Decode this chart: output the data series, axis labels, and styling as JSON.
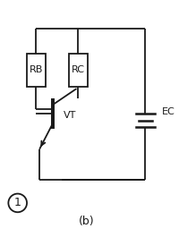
{
  "background_color": "#ffffff",
  "line_color": "#1a1a1a",
  "line_width": 1.3,
  "title": "(b)",
  "label_circle": "1",
  "label_RB": "RB",
  "label_RC": "RC",
  "label_VT": "VT",
  "label_EC": "EC",
  "font_size_labels": 8,
  "font_size_title": 9,
  "figsize": [
    2.0,
    2.65
  ],
  "dpi": 100,
  "xlim": [
    0,
    10
  ],
  "ylim": [
    0,
    13.25
  ]
}
